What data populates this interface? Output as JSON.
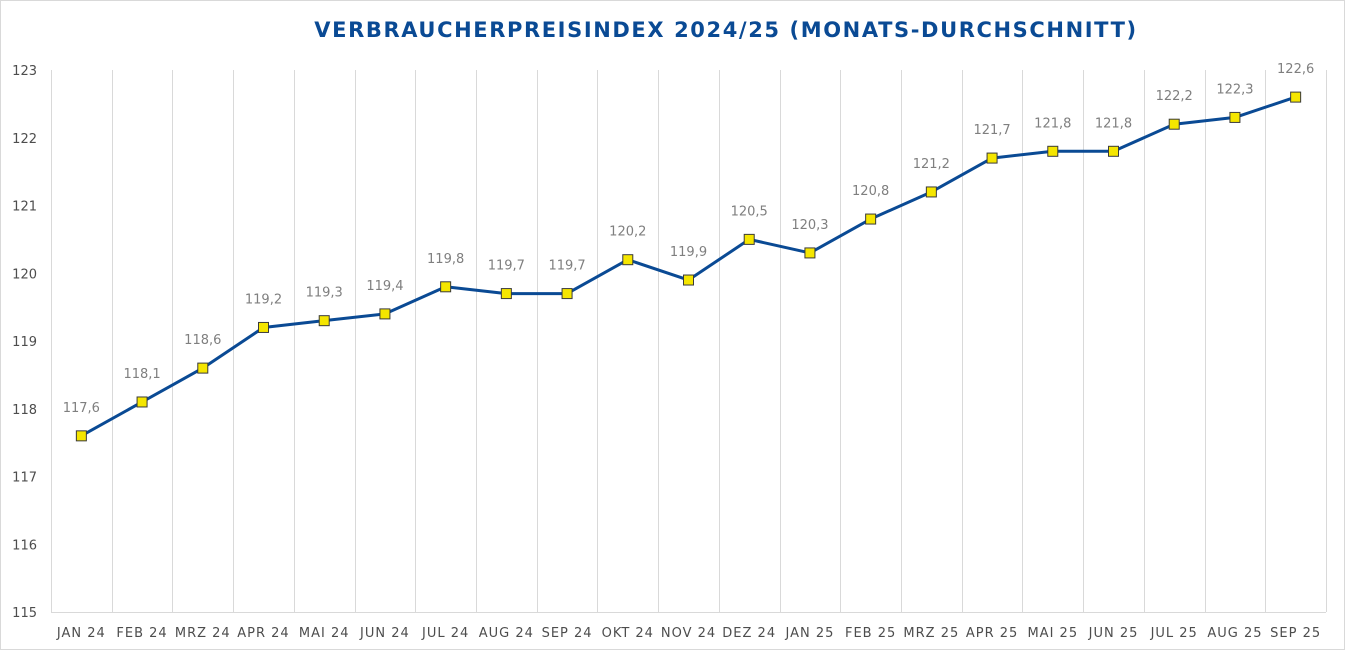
{
  "chart_data": {
    "type": "line",
    "title": "VERBRAUCHERPREISINDEX 2024/25 (MONATS-DURCHSCHNITT)",
    "xlabel": "",
    "ylabel": "",
    "ylim": [
      115,
      123
    ],
    "yticks": [
      "115",
      "116",
      "117",
      "118",
      "119",
      "120",
      "121",
      "122",
      "123"
    ],
    "grid": "vertical gridlines",
    "legend": "none",
    "categories": [
      "JAN 24",
      "FEB 24",
      "MRZ 24",
      "APR 24",
      "MAI 24",
      "JUN 24",
      "JUL 24",
      "AUG 24",
      "SEP 24",
      "OKT 24",
      "NOV 24",
      "DEZ 24",
      "JAN 25",
      "FEB 25",
      "MRZ 25",
      "APR 25",
      "MAI 25",
      "JUN 25",
      "JUL 25",
      "AUG 25",
      "SEP 25"
    ],
    "series": [
      {
        "values": [
          117.6,
          118.1,
          118.6,
          119.2,
          119.3,
          119.4,
          119.8,
          119.7,
          119.7,
          120.2,
          119.9,
          120.5,
          120.3,
          120.8,
          121.2,
          121.7,
          121.8,
          121.8,
          122.2,
          122.3,
          122.6
        ],
        "labels": [
          "117,6",
          "118,1",
          "118,6",
          "119,2",
          "119,3",
          "119,4",
          "119,8",
          "119,7",
          "119,7",
          "120,2",
          "119,9",
          "120,5",
          "120,3",
          "120,8",
          "121,2",
          "121,7",
          "121,8",
          "121,8",
          "122,2",
          "122,3",
          "122,6"
        ],
        "line_color": "#0a4a94",
        "marker_color": "#f5e600",
        "marker_shape": "square"
      }
    ],
    "colors": {
      "title": "#0a4a94",
      "grid": "#d9d9d9",
      "axis_text": "#4d4d4d",
      "data_label": "#7f7f7f"
    }
  }
}
